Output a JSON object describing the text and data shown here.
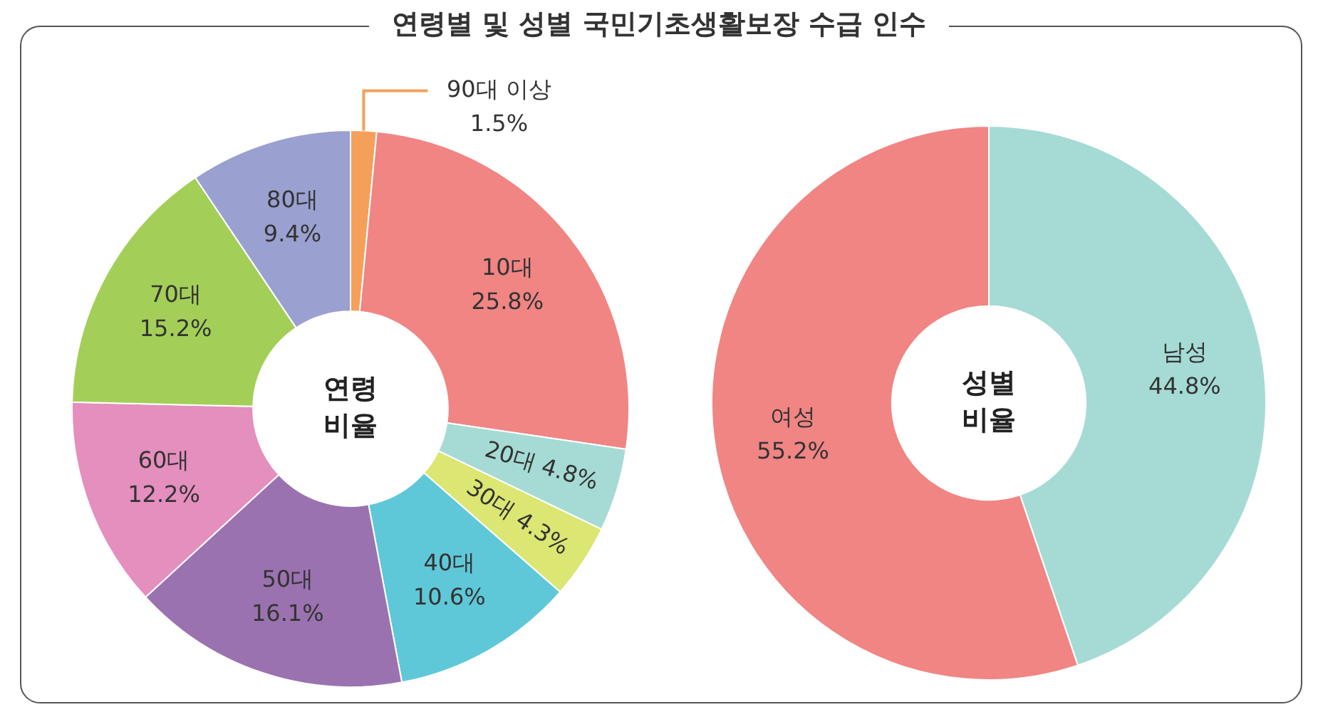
{
  "chart_data": [
    {
      "type": "donut",
      "title": "연령별 및 성별 국민기초생활보장 수급 인수",
      "categories": [
        "90대 이상",
        "10대",
        "20대",
        "30대",
        "40대",
        "50대",
        "60대",
        "70대",
        "80대"
      ],
      "values": [
        1.5,
        25.8,
        4.8,
        4.3,
        10.6,
        16.1,
        12.2,
        15.2,
        9.4
      ],
      "value_labels": [
        "1.5%",
        "25.8%",
        "4.8%",
        "4.3%",
        "10.6%",
        "16.1%",
        "12.2%",
        "15.2%",
        "9.4%"
      ],
      "colors": [
        "#f5a05a",
        "#f08584",
        "#a6dbd5",
        "#dce672",
        "#5fc8d8",
        "#9b72b0",
        "#e48fbd",
        "#a3cf59",
        "#9aa0d0"
      ],
      "annotations": [
        "연령\n비율"
      ]
    },
    {
      "type": "donut",
      "categories": [
        "남성",
        "여성"
      ],
      "values": [
        44.8,
        55.2
      ],
      "value_labels": [
        "44.8%",
        "55.2%"
      ],
      "colors": [
        "#a6dbd5",
        "#f08584"
      ],
      "annotations": [
        "성별\n비율"
      ]
    }
  ]
}
